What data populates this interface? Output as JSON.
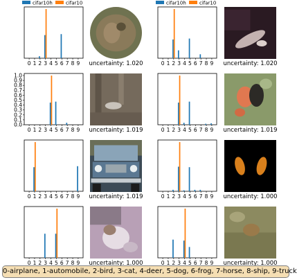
{
  "legend": {
    "series": [
      "cifar10h",
      "cifar10"
    ]
  },
  "colors": {
    "cifar10h": "#1f77b4",
    "cifar10": "#ff7f0e",
    "key_bg": "#f5deb3"
  },
  "class_key": "0-airplane, 1-automobile, 2-bird, 3-cat, 4-deer, 5-dog, 6-frog, 7-horse, 8-ship, 9-truck",
  "chart_data": [
    {
      "type": "bar",
      "categories": [
        "0",
        "1",
        "2",
        "3",
        "4",
        "5",
        "6",
        "7",
        "8",
        "9"
      ],
      "ylim": [
        0,
        1.0
      ],
      "yticks": [],
      "series": [
        {
          "name": "cifar10h",
          "values": [
            0,
            0,
            0.04,
            0.47,
            0,
            0,
            0.49,
            0,
            0,
            0
          ]
        },
        {
          "name": "cifar10",
          "values": [
            0,
            0,
            0,
            1.0,
            0,
            0,
            0,
            0,
            0,
            0
          ]
        }
      ],
      "legend": true,
      "uncertainty": "uncertainty: 1.020",
      "image_kind": "owl"
    },
    {
      "type": "bar",
      "categories": [
        "0",
        "1",
        "2",
        "3",
        "4",
        "5",
        "6",
        "7",
        "8",
        "9"
      ],
      "ylim": [
        0,
        1.0
      ],
      "yticks": [],
      "series": [
        {
          "name": "cifar10h",
          "values": [
            0,
            0,
            0.38,
            0.16,
            0,
            0.4,
            0,
            0.08,
            0,
            0
          ]
        },
        {
          "name": "cifar10",
          "values": [
            0,
            0,
            1.0,
            0,
            0,
            0,
            0,
            0,
            0,
            0
          ]
        }
      ],
      "legend": true,
      "uncertainty": "uncertainty: 1.020",
      "image_kind": "dark"
    },
    {
      "type": "bar",
      "categories": [
        "0",
        "1",
        "2",
        "3",
        "4",
        "5",
        "6",
        "7",
        "8",
        "9"
      ],
      "ylim": [
        0,
        1.0
      ],
      "yticks": [
        "0.0",
        "0.1",
        "0.2",
        "0.3",
        "0.4",
        "0.5",
        "0.6",
        "0.7",
        "0.8",
        "0.9",
        "1.0"
      ],
      "series": [
        {
          "name": "cifar10h",
          "values": [
            0,
            0,
            0,
            0,
            0.45,
            0.47,
            0,
            0.04,
            0,
            0
          ]
        },
        {
          "name": "cifar10",
          "values": [
            0,
            0,
            0,
            0,
            1.0,
            0,
            0,
            0,
            0,
            0
          ]
        }
      ],
      "legend": false,
      "uncertainty": "uncertainty: 1.019",
      "image_kind": "brown"
    },
    {
      "type": "bar",
      "categories": [
        "0",
        "1",
        "2",
        "3",
        "4",
        "5",
        "6",
        "7",
        "8",
        "9"
      ],
      "ylim": [
        0,
        1.0
      ],
      "yticks": [],
      "series": [
        {
          "name": "cifar10h",
          "values": [
            0,
            0,
            0,
            0.45,
            0.04,
            0.47,
            0,
            0,
            0.02,
            0.03
          ]
        },
        {
          "name": "cifar10",
          "values": [
            0,
            0,
            0,
            1.0,
            0,
            0,
            0,
            0,
            0,
            0
          ]
        }
      ],
      "legend": false,
      "uncertainty": "uncertainty: 1.019",
      "image_kind": "flower"
    },
    {
      "type": "bar",
      "categories": [
        "0",
        "1",
        "2",
        "3",
        "4",
        "5",
        "6",
        "7",
        "8",
        "9"
      ],
      "ylim": [
        0,
        1.0
      ],
      "yticks": [],
      "series": [
        {
          "name": "cifar10h",
          "values": [
            0,
            0.49,
            0,
            0,
            0,
            0,
            0,
            0,
            0,
            0.51
          ]
        },
        {
          "name": "cifar10",
          "values": [
            0,
            1.0,
            0,
            0,
            0,
            0,
            0,
            0,
            0,
            0
          ]
        }
      ],
      "legend": false,
      "uncertainty": "uncertainty: 1.019",
      "image_kind": "truck"
    },
    {
      "type": "bar",
      "categories": [
        "0",
        "1",
        "2",
        "3",
        "4",
        "5",
        "6",
        "7",
        "8",
        "9"
      ],
      "ylim": [
        0,
        1.0
      ],
      "yticks": [],
      "series": [
        {
          "name": "cifar10h",
          "values": [
            0,
            0,
            0.03,
            0.5,
            0.02,
            0.49,
            0.03,
            0.03,
            0,
            0
          ]
        },
        {
          "name": "cifar10",
          "values": [
            0,
            0,
            0,
            1.0,
            0,
            0,
            0,
            0,
            0,
            0
          ]
        }
      ],
      "legend": false,
      "uncertainty": "uncertainty: 1.000",
      "image_kind": "black"
    },
    {
      "type": "bar",
      "categories": [
        "0",
        "1",
        "2",
        "3",
        "4",
        "5",
        "6",
        "7",
        "8",
        "9"
      ],
      "ylim": [
        0,
        1.0
      ],
      "yticks": [],
      "series": [
        {
          "name": "cifar10h",
          "values": [
            0,
            0,
            0,
            0.49,
            0,
            0.49,
            0,
            0,
            0,
            0
          ]
        },
        {
          "name": "cifar10",
          "values": [
            0,
            0,
            0,
            0,
            0,
            1.0,
            0,
            0,
            0,
            0
          ]
        }
      ],
      "legend": false,
      "uncertainty": "uncertainty: 1.000",
      "image_kind": "cat"
    },
    {
      "type": "bar",
      "categories": [
        "0",
        "1",
        "2",
        "3",
        "4",
        "5",
        "6",
        "7",
        "8",
        "9"
      ],
      "ylim": [
        0,
        1.0
      ],
      "yticks": [],
      "series": [
        {
          "name": "cifar10h",
          "values": [
            0,
            0,
            0.37,
            0,
            0.35,
            0.22,
            0,
            0,
            0,
            0
          ]
        },
        {
          "name": "cifar10",
          "values": [
            0,
            0,
            0,
            0,
            1.0,
            0,
            0,
            0,
            0,
            0
          ]
        }
      ],
      "legend": false,
      "uncertainty": "uncertainty: 1.000",
      "image_kind": "grass"
    }
  ]
}
